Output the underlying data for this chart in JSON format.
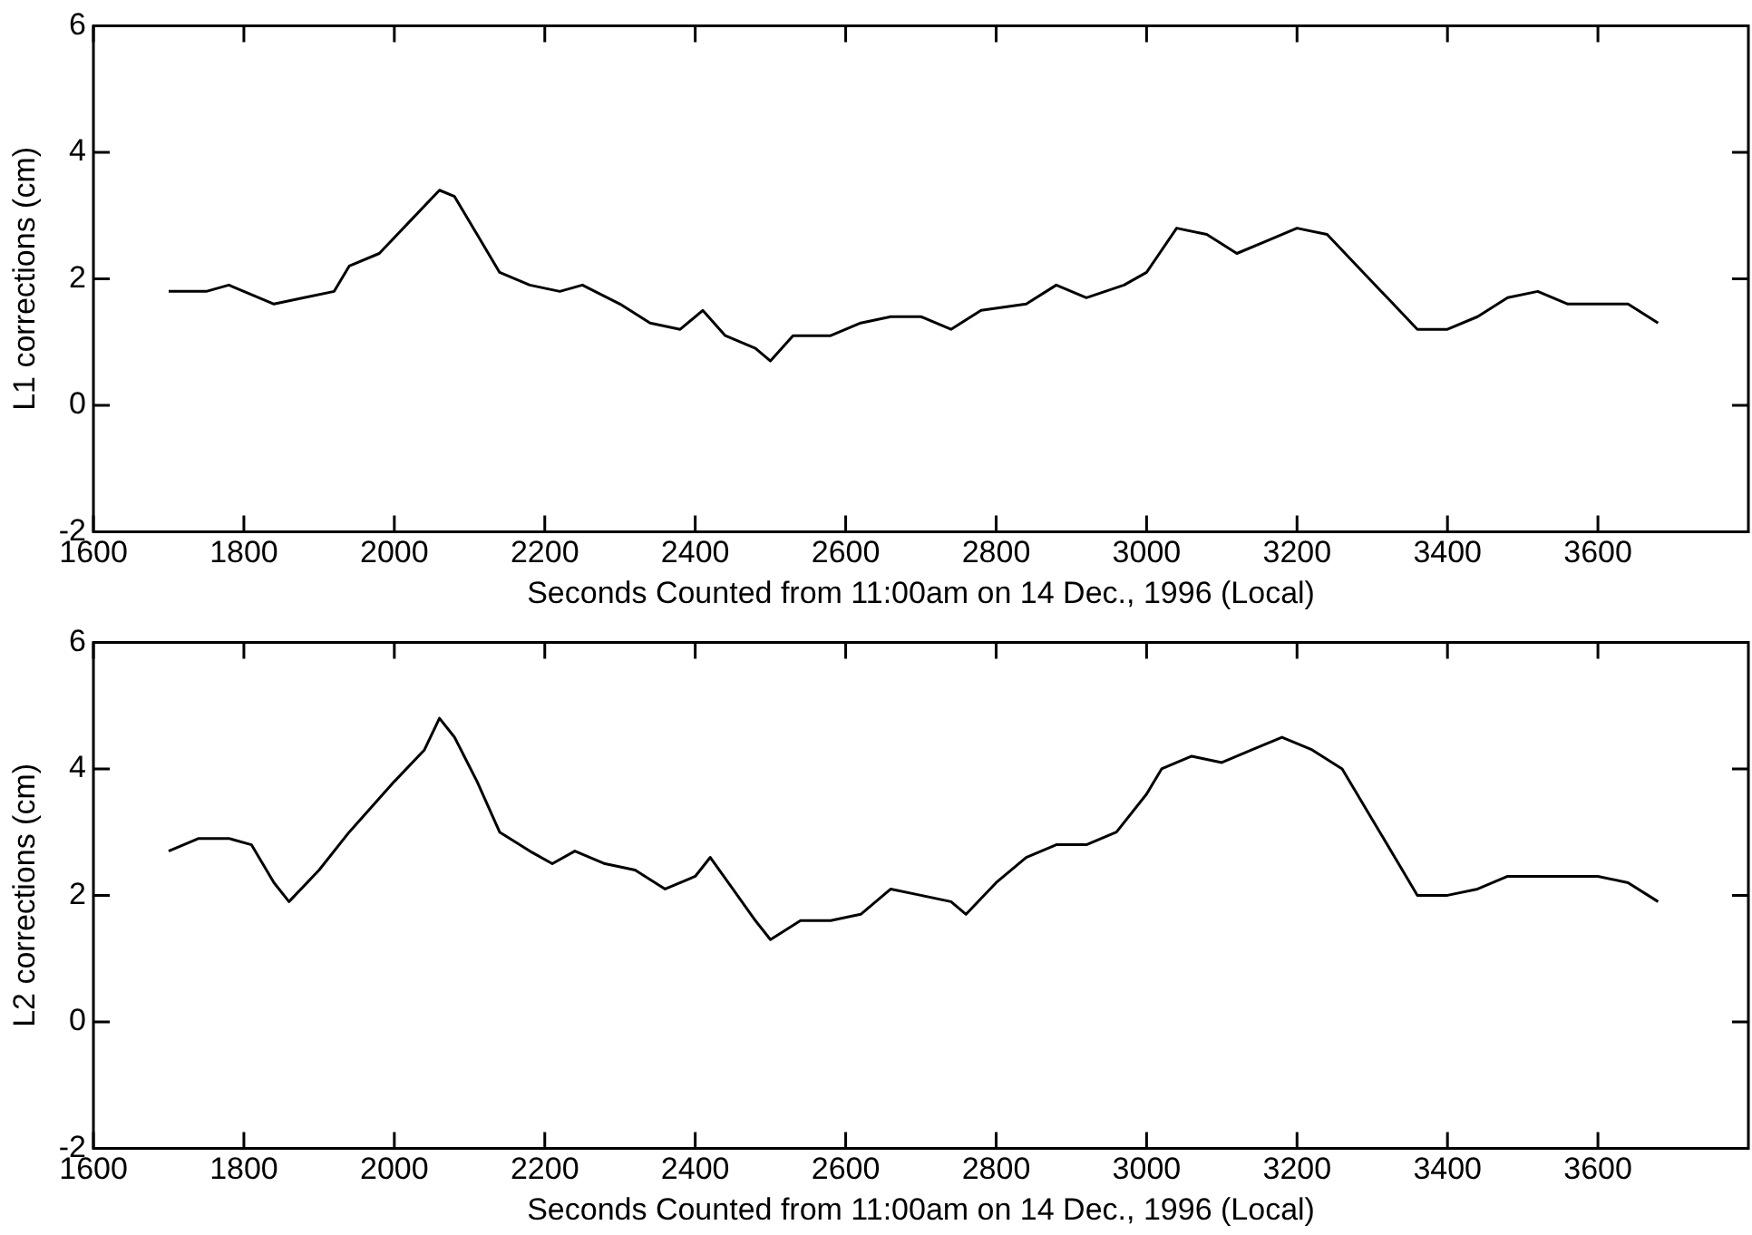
{
  "chart_data": [
    {
      "type": "line",
      "xlabel": "Seconds Counted from 11:00am on 14 Dec., 1996 (Local)",
      "ylabel": "L1 corrections (cm)",
      "xlim": [
        1600,
        3800
      ],
      "xticks": [
        1600,
        1800,
        2000,
        2200,
        2400,
        2600,
        2800,
        3000,
        3200,
        3400,
        3600
      ],
      "ylim": [
        -2,
        6
      ],
      "yticks": [
        -2,
        0,
        2,
        4,
        6
      ],
      "grid": false,
      "legend": false,
      "marker": "none",
      "line_style": "solid",
      "x": [
        1700,
        1750,
        1780,
        1820,
        1840,
        1880,
        1920,
        1940,
        1980,
        2020,
        2060,
        2080,
        2110,
        2140,
        2180,
        2220,
        2250,
        2300,
        2340,
        2380,
        2410,
        2440,
        2480,
        2500,
        2530,
        2580,
        2620,
        2660,
        2700,
        2740,
        2780,
        2840,
        2880,
        2920,
        2970,
        3000,
        3040,
        3080,
        3120,
        3160,
        3200,
        3240,
        3280,
        3320,
        3360,
        3400,
        3440,
        3480,
        3520,
        3560,
        3600,
        3640,
        3680
      ],
      "series": [
        {
          "color": "#000000",
          "values": [
            1.8,
            1.8,
            1.9,
            1.7,
            1.6,
            1.7,
            1.8,
            2.2,
            2.4,
            2.9,
            3.4,
            3.3,
            2.7,
            2.1,
            1.9,
            1.8,
            1.9,
            1.6,
            1.3,
            1.2,
            1.5,
            1.1,
            0.9,
            0.7,
            1.1,
            1.1,
            1.3,
            1.4,
            1.4,
            1.2,
            1.5,
            1.6,
            1.9,
            1.7,
            1.9,
            2.1,
            2.8,
            2.7,
            2.4,
            2.6,
            2.8,
            2.7,
            2.2,
            1.7,
            1.2,
            1.2,
            1.4,
            1.7,
            1.8,
            1.6,
            1.6,
            1.6,
            1.3
          ]
        }
      ]
    },
    {
      "type": "line",
      "xlabel": "Seconds Counted from 11:00am on 14 Dec., 1996 (Local)",
      "ylabel": "L2 corrections (cm)",
      "xlim": [
        1600,
        3800
      ],
      "xticks": [
        1600,
        1800,
        2000,
        2200,
        2400,
        2600,
        2800,
        3000,
        3200,
        3400,
        3600
      ],
      "ylim": [
        -2,
        6
      ],
      "yticks": [
        -2,
        0,
        2,
        4,
        6
      ],
      "grid": false,
      "legend": false,
      "marker": "none",
      "line_style": "solid",
      "x": [
        1700,
        1740,
        1780,
        1810,
        1840,
        1860,
        1900,
        1940,
        2000,
        2040,
        2060,
        2080,
        2110,
        2140,
        2180,
        2210,
        2240,
        2280,
        2320,
        2360,
        2400,
        2420,
        2450,
        2480,
        2500,
        2540,
        2580,
        2620,
        2660,
        2700,
        2740,
        2760,
        2800,
        2840,
        2880,
        2920,
        2960,
        3000,
        3020,
        3060,
        3100,
        3140,
        3180,
        3220,
        3260,
        3300,
        3340,
        3360,
        3400,
        3440,
        3480,
        3520,
        3560,
        3600,
        3640,
        3680
      ],
      "series": [
        {
          "color": "#000000",
          "values": [
            2.7,
            2.9,
            2.9,
            2.8,
            2.2,
            1.9,
            2.4,
            3.0,
            3.8,
            4.3,
            4.8,
            4.5,
            3.8,
            3.0,
            2.7,
            2.5,
            2.7,
            2.5,
            2.4,
            2.1,
            2.3,
            2.6,
            2.1,
            1.6,
            1.3,
            1.6,
            1.6,
            1.7,
            2.1,
            2.0,
            1.9,
            1.7,
            2.2,
            2.6,
            2.8,
            2.8,
            3.0,
            3.6,
            4.0,
            4.2,
            4.1,
            4.3,
            4.5,
            4.3,
            4.0,
            3.2,
            2.4,
            2.0,
            2.0,
            2.1,
            2.3,
            2.3,
            2.3,
            2.3,
            2.2,
            1.9
          ]
        }
      ]
    }
  ]
}
